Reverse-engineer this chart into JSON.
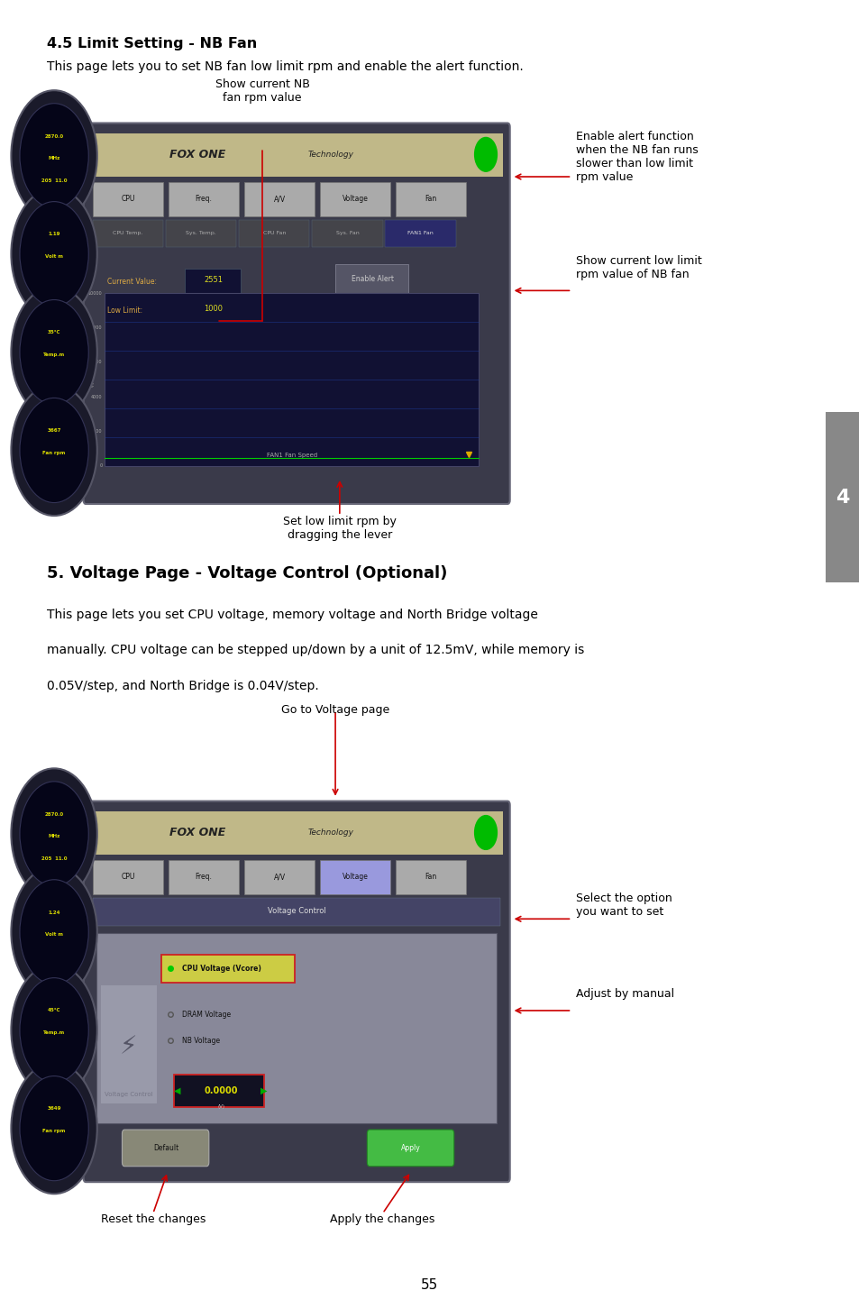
{
  "page_bg": "#ffffff",
  "page_number": "55",
  "tab_color": "#888888",
  "tab_text": "4",
  "section1_title": "4.5 Limit Setting - NB Fan",
  "section1_body": "This page lets you to set NB fan low limit rpm and enable the alert function.",
  "section2_title": "5. Voltage Page - Voltage Control (Optional)",
  "section2_body1": "This page lets you set CPU voltage, memory voltage and North Bridge voltage",
  "section2_body2": "manually. CPU voltage can be stepped up/down by a unit of 12.5mV, while memory is",
  "section2_body3": "0.05V/step, and North Bridge is 0.04V/step.",
  "annotation1_label": "Show current NB\nfan rpm value",
  "annotation2_label": "Enable alert function\nwhen the NB fan runs\nslower than low limit\nrpm value",
  "annotation3_label": "Show current low limit\nrpm value of NB fan",
  "annotation4_label": "Set low limit rpm by\ndragging the lever",
  "annotation5_label": "Go to Voltage page",
  "annotation6_label": "Select the option\nyou want to set",
  "annotation7_label": "Adjust by manual",
  "annotation8_label": "Reset the changes",
  "annotation9_label": "Apply the changes",
  "nav_tabs": [
    "CPU",
    "Freq.",
    "A/V",
    "Voltage",
    "Fan"
  ],
  "sub_tabs1": [
    "CPU Temp.",
    "Sys. Temp.",
    "CPU Fan",
    "Sys. Fan",
    "FAN1 Fan"
  ],
  "gauge_values1": [
    "2870.0\nMHz\n205  11.0",
    "1.19\nVolt m",
    "35°C\nTemp.m",
    "3667\nFan rpm"
  ],
  "gauge_values2": [
    "2870.0\nMHz\n205  11.0",
    "1.24\nVolt m",
    "45°C\nTemp.m",
    "3649\nFan rpm"
  ],
  "current_value": "2551",
  "low_limit": "1000",
  "voltage_value": "0.0000"
}
